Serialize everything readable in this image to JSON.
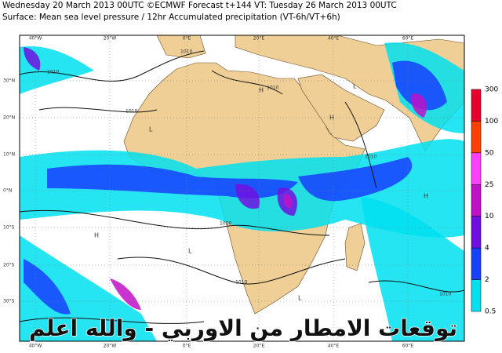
{
  "header": {
    "line1": "Wednesday 20 March 2013 00UTC ©ECMWF Forecast t+144 VT: Tuesday 26 March 2013 00UTC",
    "line2": "Surface: Mean sea level pressure / 12hr Accumulated precipitation (VT-6h/VT+6h)"
  },
  "map": {
    "lon_labels": [
      "40°W",
      "20°W",
      "0°E",
      "20°E",
      "40°E",
      "60°E"
    ],
    "lat_labels": [
      "30°N",
      "20°N",
      "10°N",
      "0°N",
      "10°S",
      "20°S",
      "30°S"
    ],
    "isobar_labels": [
      "1010",
      "1010",
      "1010",
      "1020",
      "1010",
      "1010",
      "1010",
      "1010"
    ],
    "pressure_centers": [
      "H",
      "H",
      "L",
      "L",
      "L",
      "H",
      "L",
      "H"
    ]
  },
  "colorbar": {
    "labels": [
      "300",
      "100",
      "50",
      "25",
      "10",
      "4",
      "2",
      "0.5"
    ],
    "colors": [
      "#e8002a",
      "#ff4000",
      "#ff40ff",
      "#c010c8",
      "#7010e0",
      "#1840ff",
      "#00e0f0"
    ]
  },
  "caption": "توقعات الامطار من الاوربي - والله اعلم"
}
